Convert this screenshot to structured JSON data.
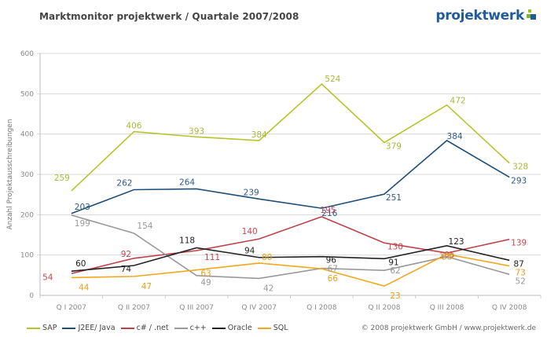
{
  "header": {
    "title": "Marktmonitor projektwerk / Quartale 2007/2008",
    "logo_text": "projektwerk"
  },
  "footer": {
    "copyright": "© 2008 projektwerk GmbH / www.projektwerk.de"
  },
  "chart_data": {
    "type": "line",
    "title": "Marktmonitor projektwerk / Quartale 2007/2008",
    "xlabel": "",
    "ylabel": "Anzahl Projektausschreibungen",
    "ylim": [
      0,
      600
    ],
    "yticks": [
      0,
      100,
      200,
      300,
      400,
      500,
      600
    ],
    "grid": true,
    "legend_position": "bottom-left",
    "categories": [
      "Q I 2007",
      "Q II 2007",
      "Q III  2007",
      "Q IV 2007",
      "Q I 2008",
      "Q II 2008",
      "Q III 2008",
      "Q IV 2008"
    ],
    "series": [
      {
        "name": "SAP",
        "color": "#b5c42a",
        "label_color": "#a8b83a",
        "values": [
          259,
          406,
          393,
          384,
          524,
          379,
          472,
          328
        ]
      },
      {
        "name": "J2EE/ Java",
        "color": "#1f4e79",
        "label_color": "#2e5a8c",
        "values": [
          203,
          262,
          264,
          239,
          216,
          251,
          384,
          293
        ]
      },
      {
        "name": "c# / .net",
        "color": "#c0404a",
        "label_color": "#c8454f",
        "values": [
          54,
          92,
          111,
          140,
          195,
          130,
          105,
          139
        ]
      },
      {
        "name": "c++",
        "color": "#999999",
        "label_color": "#999999",
        "values": [
          199,
          154,
          49,
          42,
          67,
          62,
          96,
          52
        ]
      },
      {
        "name": "Oracle",
        "color": "#222222",
        "label_color": "#222222",
        "values": [
          60,
          74,
          118,
          94,
          96,
          91,
          123,
          87
        ]
      },
      {
        "name": "SQL",
        "color": "#f0a81c",
        "label_color": "#e8a020",
        "values": [
          44,
          47,
          63,
          80,
          66,
          23,
          102,
          73
        ]
      }
    ]
  }
}
